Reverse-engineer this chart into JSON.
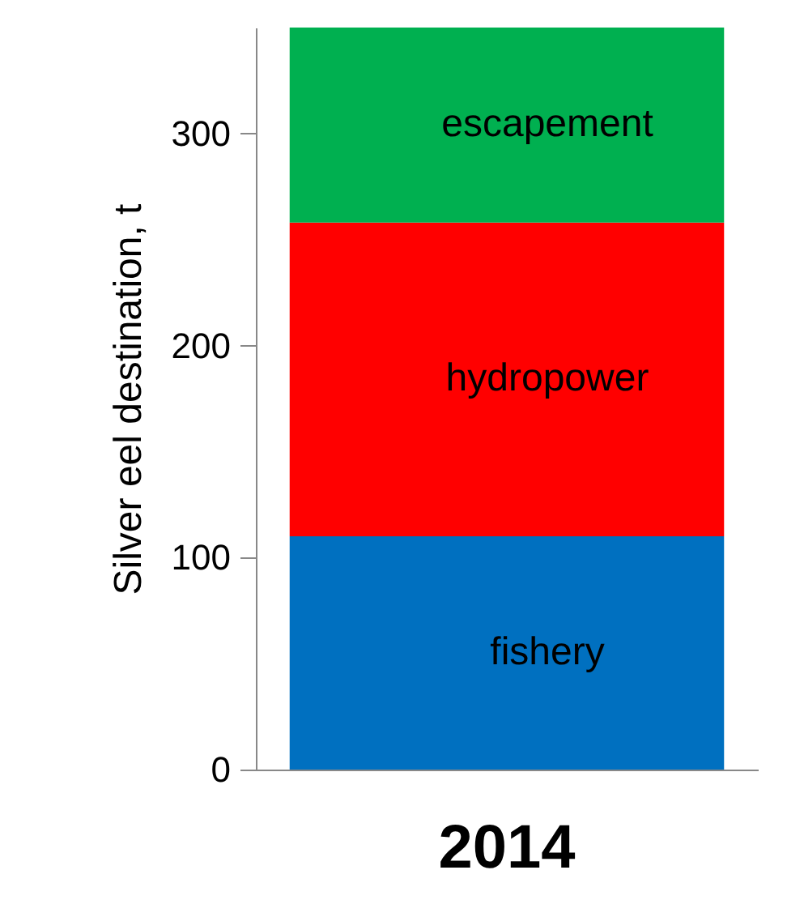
{
  "chart_data": {
    "type": "bar",
    "stacked": true,
    "categories": [
      "2014"
    ],
    "ylabel": "Silver eel destination, t",
    "ylim": [
      0,
      350
    ],
    "yticks": [
      0,
      100,
      200,
      300
    ],
    "series": [
      {
        "name": "fishery",
        "color": "#0070c0",
        "values": [
          110
        ]
      },
      {
        "name": "hydropower",
        "color": "#ff0000",
        "values": [
          148
        ]
      },
      {
        "name": "escapement",
        "color": "#00b050",
        "values": [
          92
        ]
      }
    ]
  }
}
